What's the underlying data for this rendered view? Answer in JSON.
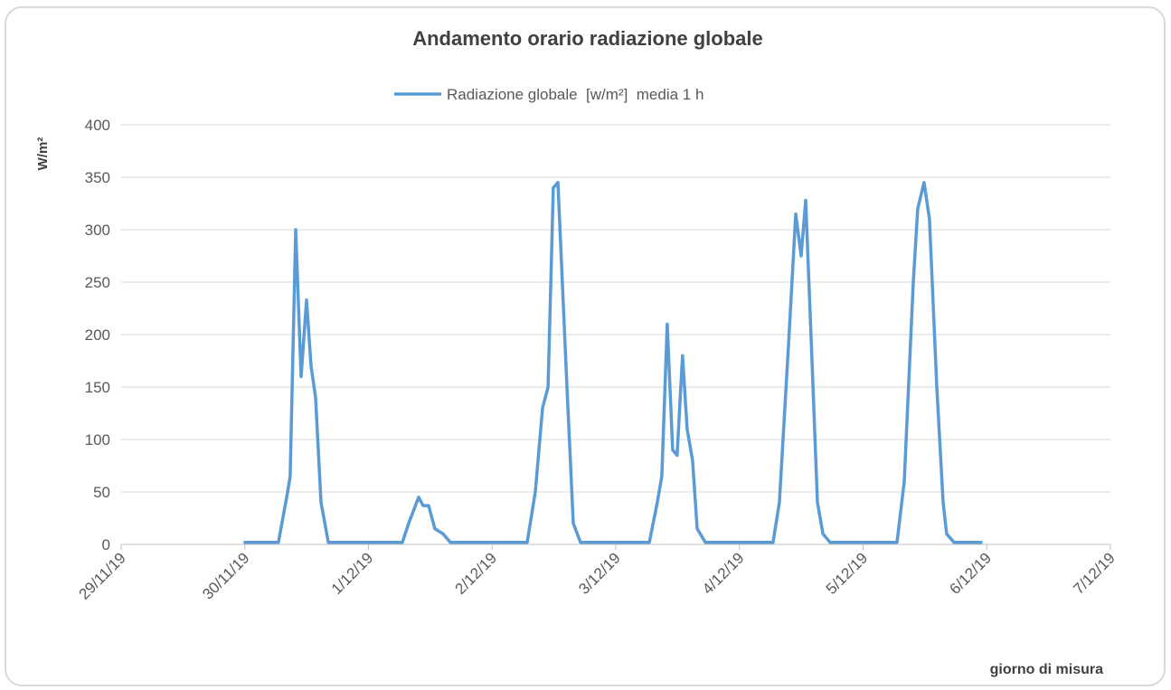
{
  "chart_data": {
    "type": "line",
    "title": "Andamento orario radiazione globale",
    "y_label": "W/m²",
    "x_label": "giorno di misura",
    "legend": "top",
    "grid": true,
    "xlim": [
      0,
      8
    ],
    "xticks": [
      {
        "value": 0,
        "label": "29/11/19"
      },
      {
        "value": 1,
        "label": "30/11/19"
      },
      {
        "value": 2,
        "label": "1/12/19"
      },
      {
        "value": 3,
        "label": "2/12/19"
      },
      {
        "value": 4,
        "label": "3/12/19"
      },
      {
        "value": 5,
        "label": "4/12/19"
      },
      {
        "value": 6,
        "label": "5/12/19"
      },
      {
        "value": 7,
        "label": "6/12/19"
      },
      {
        "value": 8,
        "label": "7/12/19"
      }
    ],
    "ylim": [
      0,
      400
    ],
    "yticks": [
      0,
      50,
      100,
      150,
      200,
      250,
      300,
      350,
      400
    ],
    "x": [
      1.0,
      1.272,
      1.346,
      1.367,
      1.411,
      1.455,
      1.499,
      1.536,
      1.572,
      1.616,
      1.675,
      2.274,
      2.325,
      2.406,
      2.442,
      2.486,
      2.537,
      2.603,
      2.662,
      3.283,
      3.349,
      3.408,
      3.452,
      3.495,
      3.532,
      3.605,
      3.656,
      3.715,
      4.271,
      4.336,
      4.372,
      4.416,
      4.46,
      4.496,
      4.54,
      4.577,
      4.621,
      4.658,
      4.724,
      5.272,
      5.323,
      5.397,
      5.455,
      5.499,
      5.536,
      5.587,
      5.631,
      5.675,
      5.733,
      6.274,
      6.333,
      6.406,
      6.442,
      6.493,
      6.537,
      6.596,
      6.647,
      6.676,
      6.735,
      6.954
    ],
    "series": [
      {
        "name": "Radiazione globale  [w/m²]  media 1 h",
        "color": "#5b9bd5",
        "values": [
          2,
          2,
          50,
          65,
          300,
          160,
          233,
          170,
          140,
          40,
          2,
          2,
          20,
          45,
          37,
          37,
          15,
          10,
          2,
          2,
          50,
          130,
          150,
          340,
          345,
          150,
          20,
          2,
          2,
          40,
          65,
          210,
          90,
          85,
          180,
          110,
          80,
          15,
          2,
          2,
          40,
          190,
          315,
          275,
          328,
          175,
          40,
          10,
          2,
          2,
          60,
          250,
          320,
          345,
          310,
          150,
          40,
          10,
          2,
          2
        ]
      }
    ]
  }
}
